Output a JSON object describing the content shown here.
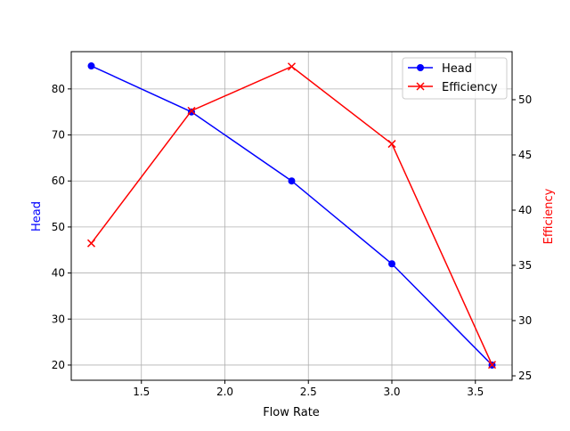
{
  "chart_data": {
    "type": "line",
    "title": "",
    "xlabel": "Flow Rate",
    "ylabel_left": "Head",
    "ylabel_right": "Efficiency",
    "xlim": [
      1.08,
      3.72
    ],
    "ylim_left": [
      16.7,
      88.1
    ],
    "ylim_right": [
      24.6,
      54.35
    ],
    "x_ticks": [
      1.5,
      2.0,
      2.5,
      3.0,
      3.5
    ],
    "x_tick_labels": [
      "1.5",
      "2.0",
      "2.5",
      "3.0",
      "3.5"
    ],
    "y_left_ticks": [
      20,
      30,
      40,
      50,
      60,
      70,
      80
    ],
    "y_left_tick_labels": [
      "20",
      "30",
      "40",
      "50",
      "60",
      "70",
      "80"
    ],
    "y_right_ticks": [
      25,
      30,
      35,
      40,
      45,
      50
    ],
    "y_right_tick_labels": [
      "25",
      "30",
      "35",
      "40",
      "45",
      "50"
    ],
    "grid": true,
    "legend_position": "top-right",
    "x": [
      1.2,
      1.8,
      2.4,
      3.0,
      3.6
    ],
    "series": [
      {
        "name": "Head",
        "axis": "left",
        "values": [
          85,
          75,
          60,
          42,
          20
        ],
        "color": "#0000ff",
        "marker": "circle"
      },
      {
        "name": "Efficiency",
        "axis": "right",
        "values": [
          37,
          49,
          53,
          46,
          26
        ],
        "color": "#ff0000",
        "marker": "x"
      }
    ]
  }
}
